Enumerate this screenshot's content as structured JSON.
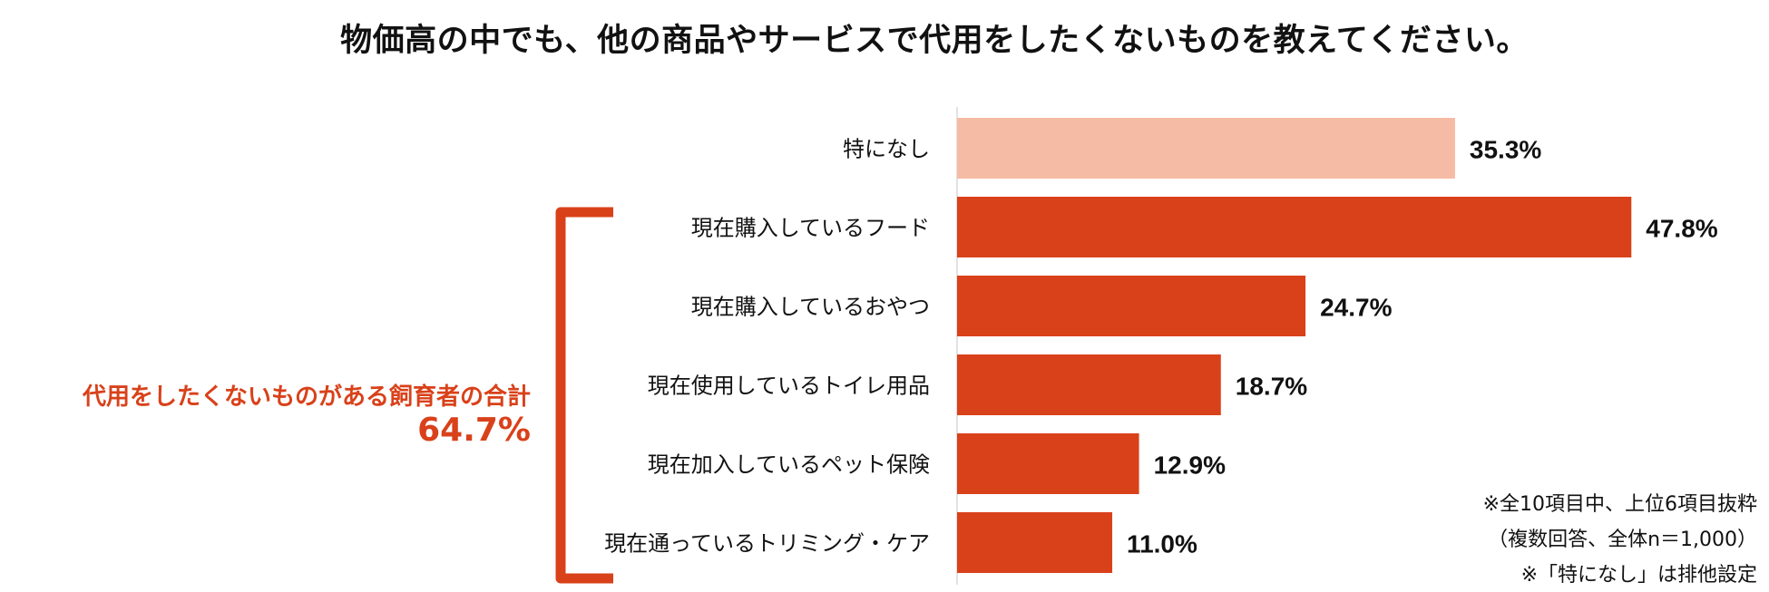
{
  "chart_data": {
    "type": "bar",
    "orientation": "horizontal",
    "title": "物価高の中でも、他の商品やサービスで代用をしたくないものを教えてください。",
    "categories": [
      "特になし",
      "現在購入しているフード",
      "現在購入しているおやつ",
      "現在使用しているトイレ用品",
      "現在加入しているペット保険",
      "現在通っているトリミング・ケア"
    ],
    "values": [
      35.3,
      47.8,
      24.7,
      18.7,
      12.9,
      11.0
    ],
    "value_labels": [
      "35.3%",
      "47.8%",
      "24.7%",
      "18.7%",
      "12.9%",
      "11.0%"
    ],
    "xlim": [
      0,
      60
    ],
    "grid": false,
    "colors": {
      "highlight": "#f5bba4",
      "primary": "#d9411a",
      "axis": "#d9d9d9"
    },
    "bar_color_keys": [
      "highlight",
      "primary",
      "primary",
      "primary",
      "primary",
      "primary"
    ]
  },
  "bracket": {
    "label": "代用をしたくないものがある飼育者の合計",
    "value": "64.7%"
  },
  "notes": [
    "※全10項目中、上位6項目抜粋",
    "（複数回答、全体n＝1,000）",
    "※「特になし」は排他設定"
  ]
}
